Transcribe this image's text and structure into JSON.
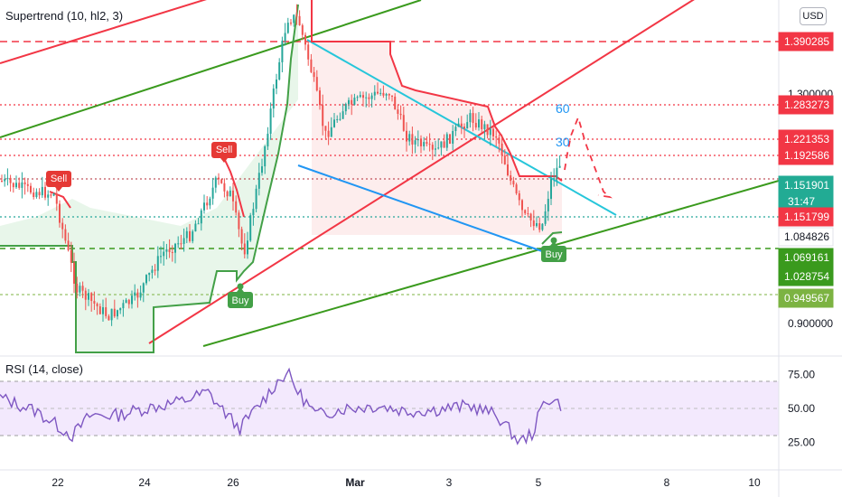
{
  "main_indicator": {
    "title": "Supertrend (10, hl2, 3)"
  },
  "sub_indicator": {
    "title": "RSI (14, close)"
  },
  "currency": {
    "label": "USD"
  },
  "colors": {
    "red": "#f23645",
    "green": "#22ab94",
    "dark_green": "#3a9a1d",
    "cyan": "#26c6da",
    "blue": "#2196f3",
    "purple": "#7e57c2",
    "rsi_band": "#f3e9fd",
    "grid_text": "#131722"
  },
  "chart_data": [
    {
      "type": "candlestick",
      "title": "",
      "currency": "USD",
      "x_ticks": [
        "22",
        "24",
        "26",
        "Mar",
        "3",
        "5",
        "8",
        "10"
      ],
      "y_ticks": [
        "1.300000",
        "0.900000"
      ],
      "price_labels": [
        {
          "value": "1.390285",
          "color": "#f23645"
        },
        {
          "value": "1.283273",
          "color": "#f23645"
        },
        {
          "value": "1.221353",
          "color": "#f23645"
        },
        {
          "value": "1.192586",
          "color": "#f23645"
        },
        {
          "value": "1.151901",
          "color": "#22ab94",
          "sub": "31:47"
        },
        {
          "value": "1.151799",
          "color": "#f23645"
        },
        {
          "value": "1.084826",
          "color": "#ffffff",
          "text_color": "#131722"
        },
        {
          "value": "1.069161",
          "color": "#3a9a1d"
        },
        {
          "value": "1.028754",
          "color": "#3a9a1d"
        },
        {
          "value": "0.949567",
          "color": "#7cb342"
        }
      ],
      "signals": [
        {
          "label": "Sell",
          "type": "sell"
        },
        {
          "label": "Sell",
          "type": "sell"
        },
        {
          "label": "Buy",
          "type": "buy"
        },
        {
          "label": "Buy",
          "type": "buy"
        }
      ],
      "annotations": [
        "60",
        "30"
      ]
    },
    {
      "type": "line",
      "title": "RSI (14, close)",
      "y_ticks": [
        "75.00",
        "50.00",
        "25.00"
      ],
      "ylim": [
        20,
        80
      ],
      "bands": [
        30,
        70
      ]
    }
  ]
}
